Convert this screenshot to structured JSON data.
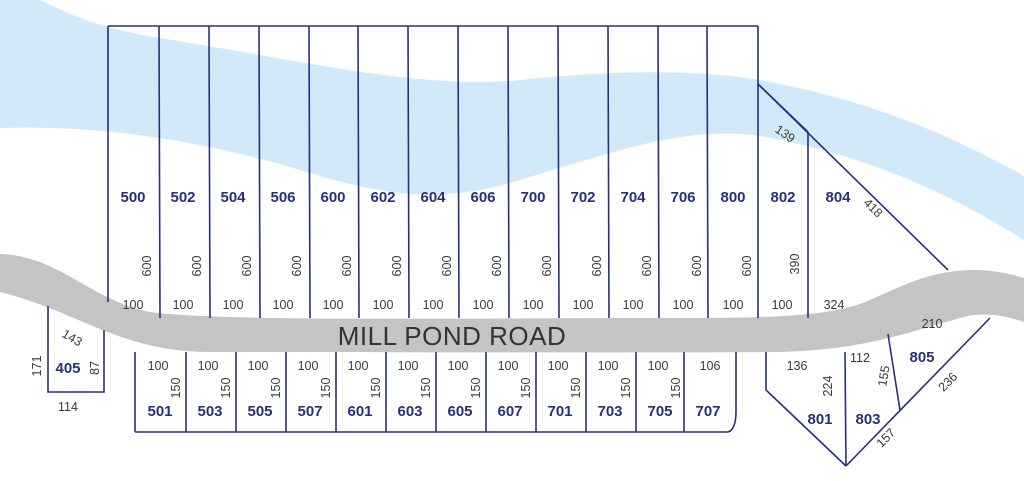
{
  "road": {
    "name": "MILL POND ROAD"
  },
  "colors": {
    "water": "#d2e9fa",
    "road": "#c4c4c4",
    "lot_line": "#26317a",
    "lot_number": "#26317a",
    "dimension": "#3a3a3a"
  },
  "north_lots": [
    {
      "number": "500",
      "depth": "600",
      "frontage": "100"
    },
    {
      "number": "502",
      "depth": "600",
      "frontage": "100"
    },
    {
      "number": "504",
      "depth": "600",
      "frontage": "100"
    },
    {
      "number": "506",
      "depth": "600",
      "frontage": "100"
    },
    {
      "number": "600",
      "depth": "600",
      "frontage": "100"
    },
    {
      "number": "602",
      "depth": "600",
      "frontage": "100"
    },
    {
      "number": "604",
      "depth": "600",
      "frontage": "100"
    },
    {
      "number": "606",
      "depth": "600",
      "frontage": "100"
    },
    {
      "number": "700",
      "depth": "600",
      "frontage": "100"
    },
    {
      "number": "702",
      "depth": "600",
      "frontage": "100"
    },
    {
      "number": "704",
      "depth": "600",
      "frontage": "100"
    },
    {
      "number": "706",
      "depth": "600",
      "frontage": "100"
    },
    {
      "number": "800",
      "depth": "600",
      "frontage": "100"
    }
  ],
  "lot_802": {
    "number": "802",
    "top": "139",
    "depth": "390",
    "frontage": "100"
  },
  "lot_804": {
    "number": "804",
    "side": "418",
    "frontage": "324"
  },
  "south_lots": [
    {
      "number": "501",
      "frontage": "100",
      "depth": "150"
    },
    {
      "number": "503",
      "frontage": "100",
      "depth": "150"
    },
    {
      "number": "505",
      "frontage": "100",
      "depth": "150"
    },
    {
      "number": "507",
      "frontage": "100",
      "depth": "150"
    },
    {
      "number": "601",
      "frontage": "100",
      "depth": "150"
    },
    {
      "number": "603",
      "frontage": "100",
      "depth": "150"
    },
    {
      "number": "605",
      "frontage": "100",
      "depth": "150"
    },
    {
      "number": "607",
      "frontage": "100",
      "depth": "150"
    },
    {
      "number": "701",
      "frontage": "100",
      "depth": "150"
    },
    {
      "number": "703",
      "frontage": "100",
      "depth": "150"
    },
    {
      "number": "705",
      "frontage": "100",
      "depth": "150"
    }
  ],
  "lot_707": {
    "number": "707",
    "frontage": "106"
  },
  "lot_405": {
    "number": "405",
    "frontage": "143",
    "left": "171",
    "right": "87",
    "bottom": "114"
  },
  "lot_801": {
    "number": "801",
    "frontage": "136",
    "side": "224"
  },
  "lot_803": {
    "number": "803",
    "frontage": "112",
    "side": "155",
    "bottom": "157"
  },
  "lot_805": {
    "number": "805",
    "frontage": "210",
    "side": "236"
  }
}
